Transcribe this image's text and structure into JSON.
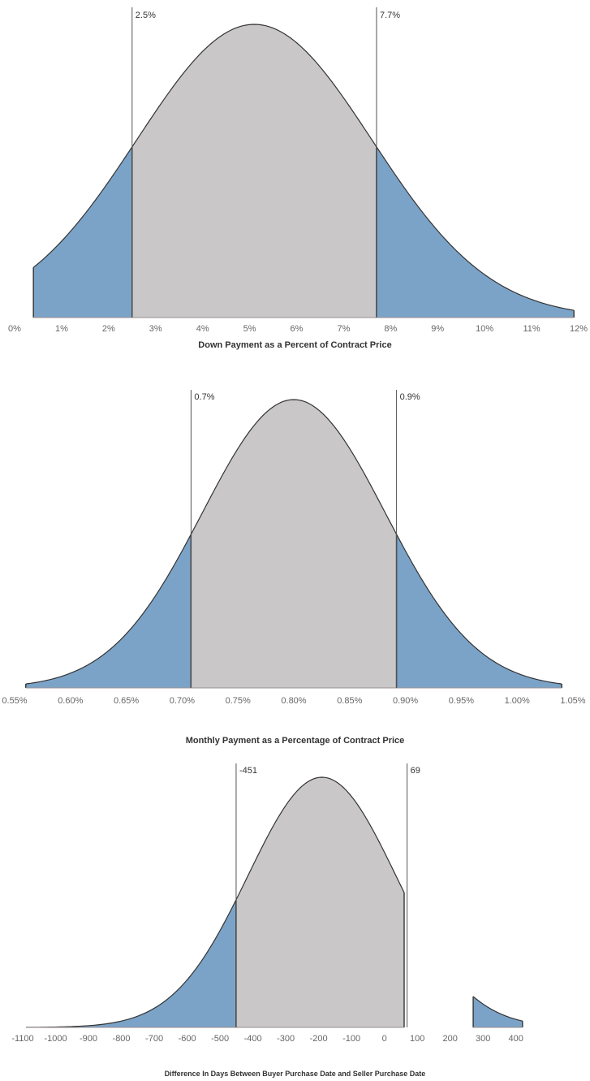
{
  "colors": {
    "tail": "#7BA3C8",
    "middle": "#C9C7C7",
    "curve": "#333333",
    "refline": "#555555",
    "background": "#ffffff"
  },
  "chart_data": [
    {
      "type": "area",
      "xlabel": "Down Payment as a Percent of Contract Price",
      "x_unit": "%",
      "xlim": [
        0,
        12
      ],
      "x_ticks": [
        "0%",
        "1%",
        "2%",
        "3%",
        "4%",
        "5%",
        "6%",
        "7%",
        "8%",
        "9%",
        "10%",
        "11%",
        "12%"
      ],
      "distribution": {
        "shape": "normal",
        "mean": 5.1,
        "sd": 2.5,
        "x_start": 0.4,
        "x_end": 11.9
      },
      "reference_lines": [
        {
          "label": "2.5%",
          "value": 2.5
        },
        {
          "label": "7.7%",
          "value": 7.7
        }
      ],
      "regions": [
        {
          "name": "lower tail",
          "from": 0.4,
          "to": 2.5,
          "color": "#7BA3C8"
        },
        {
          "name": "middle",
          "from": 2.5,
          "to": 7.7,
          "color": "#C9C7C7"
        },
        {
          "name": "upper tail",
          "from": 7.7,
          "to": 11.9,
          "color": "#7BA3C8"
        }
      ],
      "grid": false,
      "legend": "none"
    },
    {
      "type": "area",
      "xlabel": "Monthly Payment as a Percentage of Contract Price",
      "x_unit": "%",
      "xlim": [
        0.55,
        1.05
      ],
      "x_ticks": [
        "0.55%",
        "0.60%",
        "0.65%",
        "0.70%",
        "0.75%",
        "0.80%",
        "0.85%",
        "0.90%",
        "0.95%",
        "1.00%",
        "1.05%"
      ],
      "distribution": {
        "shape": "normal",
        "mean": 0.8,
        "sd": 0.082,
        "x_start": 0.56,
        "x_end": 1.04
      },
      "reference_lines": [
        {
          "label": "0.7%",
          "value": 0.708
        },
        {
          "label": "0.9%",
          "value": 0.892
        }
      ],
      "regions": [
        {
          "name": "lower tail",
          "from": 0.56,
          "to": 0.708,
          "color": "#7BA3C8"
        },
        {
          "name": "middle",
          "from": 0.708,
          "to": 0.892,
          "color": "#C9C7C7"
        },
        {
          "name": "upper tail",
          "from": 0.892,
          "to": 1.04,
          "color": "#7BA3C8"
        }
      ],
      "grid": false,
      "legend": "none"
    },
    {
      "type": "area",
      "xlabel": "Difference In Days Between Buyer Purchase Date and Seller Purchase Date",
      "x_unit": "days",
      "xlim": [
        -1100,
        450
      ],
      "x_tick_values": [
        -1100,
        -1000,
        -900,
        -800,
        -700,
        -600,
        -500,
        -400,
        -300,
        -200,
        -100,
        0,
        100,
        200,
        300,
        400
      ],
      "x_ticks": [
        "-1100",
        "-1000",
        "-900",
        "-800",
        "-700",
        "-600",
        "-500",
        "-400",
        "-300",
        "-200",
        "-100",
        "0",
        "100",
        "200",
        "300",
        "400"
      ],
      "distribution": {
        "shape": "normal",
        "mean": -190,
        "sd": 225,
        "x_start": -1090,
        "x_end": 420
      },
      "gap": [
        60,
        270
      ],
      "reference_lines": [
        {
          "label": "-451",
          "value": -451
        },
        {
          "label": "69",
          "value": 69
        }
      ],
      "regions": [
        {
          "name": "lower tail",
          "from": -1090,
          "to": -451,
          "color": "#7BA3C8"
        },
        {
          "name": "middle",
          "from": -451,
          "to": 60,
          "color": "#C9C7C7"
        },
        {
          "name": "upper tail",
          "from": 270,
          "to": 420,
          "color": "#7BA3C8"
        }
      ],
      "grid": false,
      "legend": "none"
    }
  ]
}
